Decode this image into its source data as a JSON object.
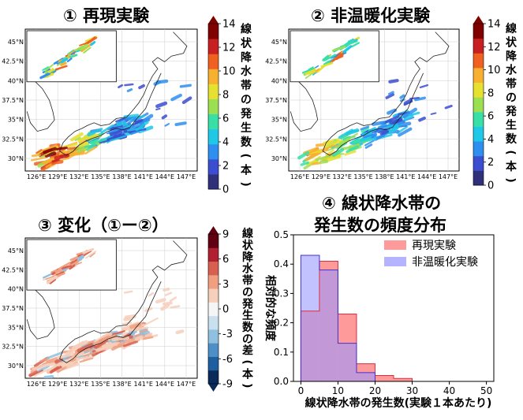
{
  "chart_data": [
    {
      "type": "heatmap",
      "title": "① 再現実験",
      "colorbar_label": "線状降水帯の発生数(本)",
      "colorbar_ticks": [
        "0",
        "2",
        "4",
        "6",
        "8",
        "10",
        "12",
        "14"
      ],
      "colorbar_range": [
        0,
        14
      ],
      "x_ticks": [
        "126°E",
        "129°E",
        "132°E",
        "135°E",
        "138°E",
        "141°E",
        "144°E",
        "147°E"
      ],
      "y_ticks": [
        "45°N",
        "42.5°N",
        "40°N",
        "37.5°N",
        "35°N",
        "32.5°N",
        "30°N"
      ],
      "colormap": "jet"
    },
    {
      "type": "heatmap",
      "title": "② 非温暖化実験",
      "colorbar_label": "線状降水帯の発生数(本)",
      "colorbar_ticks": [
        "0",
        "2",
        "4",
        "6",
        "8",
        "10",
        "12",
        "14"
      ],
      "colorbar_range": [
        0,
        14
      ],
      "x_ticks": [
        "126°E",
        "129°E",
        "132°E",
        "135°E",
        "138°E",
        "141°E",
        "144°E",
        "147°E"
      ],
      "y_ticks": [
        "45°N",
        "42.5°N",
        "40°N",
        "37.5°N",
        "35°N",
        "32.5°N",
        "30°N"
      ],
      "colormap": "jet"
    },
    {
      "type": "heatmap",
      "title": "③ 変化（①ー②）",
      "colorbar_label": "線状降水帯の発生数の差(本)",
      "colorbar_ticks": [
        "-9",
        "-6",
        "-3",
        "0",
        "3",
        "6",
        "9"
      ],
      "colorbar_range": [
        -9,
        9
      ],
      "x_ticks": [
        "126°E",
        "129°E",
        "132°E",
        "135°E",
        "138°E",
        "141°E",
        "144°E",
        "147°E"
      ],
      "y_ticks": [
        "45°N",
        "42.5°N",
        "40°N",
        "37.5°N",
        "35°N",
        "32.5°N",
        "30°N"
      ],
      "colormap": "RdBu_r"
    },
    {
      "type": "bar",
      "title": "④ 線状降水帯の\n発生数の頻度分布",
      "title_lines": [
        "④ 線状降水帯の",
        "発生数の頻度分布"
      ],
      "xlabel": "線状降水帯の発生数(実験１本あたり)",
      "ylabel": "相対的な頻度",
      "xlim": [
        -2,
        52
      ],
      "ylim": [
        0,
        0.5
      ],
      "x_ticks": [
        0,
        10,
        20,
        30,
        40,
        50
      ],
      "y_ticks": [
        0.0,
        0.1,
        0.2,
        0.3,
        0.4,
        0.5
      ],
      "bin_edges": [
        0,
        5,
        10,
        15,
        20,
        25,
        30
      ],
      "legend_position": "top-right",
      "series": [
        {
          "name": "再現実験",
          "color": "#ff9a9a",
          "values": [
            0.24,
            0.41,
            0.23,
            0.06,
            0.02,
            0.01
          ]
        },
        {
          "name": "非温暖化実験",
          "color": "#9a9aff",
          "values": [
            0.43,
            0.38,
            0.13,
            0.03,
            0.0,
            0.0
          ]
        }
      ]
    }
  ],
  "colors": {
    "jet_scale": [
      "#30307a",
      "#3b4ecf",
      "#2f8ff0",
      "#20c8e8",
      "#38e0a8",
      "#9ce052",
      "#e6e030",
      "#f8b030",
      "#f06020",
      "#c82020",
      "#800000"
    ],
    "rdbu_scale": [
      "#0a2a5a",
      "#1f5fa0",
      "#4f8fc8",
      "#8fc0e0",
      "#c9e0ef",
      "#f5f5f5",
      "#f7d0bc",
      "#f0a080",
      "#d86050",
      "#b02030",
      "#600010"
    ],
    "overlap": "#8e5ca8"
  }
}
